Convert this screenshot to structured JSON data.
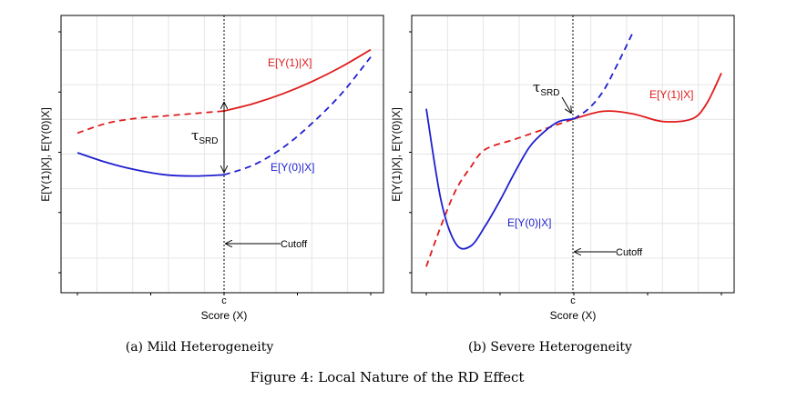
{
  "figure_caption": "Figure 4: Local Nature of the RD Effect",
  "chart_data": [
    {
      "type": "line",
      "subcaption": "(a) Mild Heterogeneity",
      "xlabel": "Score (X)",
      "ylabel": "E[Y(1)|X], E[Y(0)|X]",
      "x_tick_label": "c",
      "cutoff_x": 0.5,
      "xlim": [
        0,
        1
      ],
      "ylim": [
        0,
        1
      ],
      "grid": true,
      "series": [
        {
          "name": "E[Y(1)|X]",
          "color": "#e01b1b",
          "style_left": "dashed",
          "style_right": "solid",
          "x": [
            0.0,
            0.1,
            0.2,
            0.3,
            0.4,
            0.5,
            0.6,
            0.7,
            0.8,
            0.9,
            1.0
          ],
          "y": [
            0.58,
            0.62,
            0.64,
            0.65,
            0.66,
            0.67,
            0.7,
            0.74,
            0.79,
            0.85,
            0.92
          ]
        },
        {
          "name": "E[Y(0)|X]",
          "color": "#1f1fd0",
          "style_left": "solid",
          "style_right": "dashed",
          "x": [
            0.0,
            0.1,
            0.2,
            0.3,
            0.4,
            0.5,
            0.6,
            0.7,
            0.8,
            0.9,
            1.0
          ],
          "y": [
            0.5,
            0.46,
            0.43,
            0.41,
            0.405,
            0.41,
            0.45,
            0.52,
            0.62,
            0.74,
            0.89
          ]
        }
      ],
      "annotations": {
        "effect_label": "τ",
        "effect_sub": "SRD",
        "cutoff_label": "Cutoff",
        "y1_label": "E[Y(1)|X]",
        "y0_label": "E[Y(0)|X]"
      }
    },
    {
      "type": "line",
      "subcaption": "(b) Severe Heterogeneity",
      "xlabel": "Score (X)",
      "ylabel": "E[Y(1)|X], E[Y(0)|X]",
      "x_tick_label": "c",
      "cutoff_x": 0.5,
      "xlim": [
        0,
        1
      ],
      "ylim": [
        0,
        1
      ],
      "grid": true,
      "series": [
        {
          "name": "E[Y(1)|X]",
          "color": "#e01b1b",
          "style_left": "dashed",
          "style_right": "solid",
          "x": [
            0.0,
            0.05,
            0.1,
            0.15,
            0.2,
            0.3,
            0.4,
            0.5,
            0.6,
            0.7,
            0.8,
            0.9,
            0.95,
            1.0
          ],
          "y": [
            0.06,
            0.22,
            0.36,
            0.45,
            0.52,
            0.56,
            0.6,
            0.64,
            0.67,
            0.66,
            0.63,
            0.64,
            0.7,
            0.82
          ]
        },
        {
          "name": "E[Y(0)|X]",
          "color": "#1f1fd0",
          "style_left": "solid",
          "style_right": "dashed",
          "x": [
            0.0,
            0.05,
            0.1,
            0.15,
            0.2,
            0.25,
            0.3,
            0.35,
            0.4,
            0.45,
            0.5,
            0.55,
            0.6,
            0.65,
            0.7
          ],
          "y": [
            0.68,
            0.32,
            0.15,
            0.14,
            0.22,
            0.32,
            0.43,
            0.53,
            0.59,
            0.63,
            0.64,
            0.68,
            0.75,
            0.86,
            0.98
          ]
        }
      ],
      "annotations": {
        "effect_label": "τ",
        "effect_sub": "SRD",
        "cutoff_label": "Cutoff",
        "y1_label": "E[Y(1)|X]",
        "y0_label": "E[Y(0)|X]"
      }
    }
  ]
}
